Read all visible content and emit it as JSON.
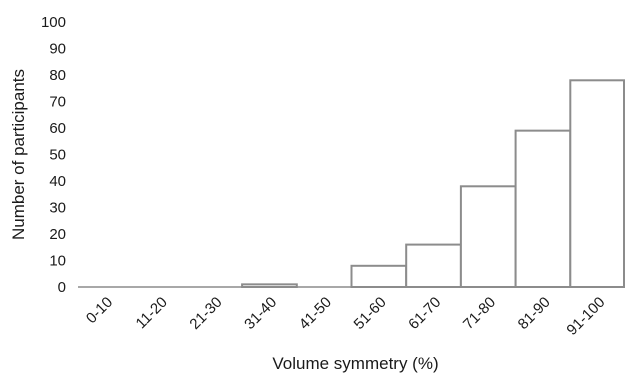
{
  "chart_data": {
    "type": "bar",
    "title": "",
    "xlabel": "Volume symmetry (%)",
    "ylabel": "Number of participants",
    "categories": [
      "0-10",
      "11-20",
      "21-30",
      "31-40",
      "41-50",
      "51-60",
      "61-70",
      "71-80",
      "81-90",
      "91-100"
    ],
    "values": [
      0,
      0,
      0,
      1,
      0,
      8,
      16,
      38,
      59,
      78
    ],
    "ylim": [
      0,
      100
    ],
    "yticks": [
      0,
      10,
      20,
      30,
      40,
      50,
      60,
      70,
      80,
      90,
      100
    ],
    "grid": false,
    "legend": "none",
    "bar_fill": "#ffffff",
    "bar_stroke": "#8c8c8c"
  }
}
